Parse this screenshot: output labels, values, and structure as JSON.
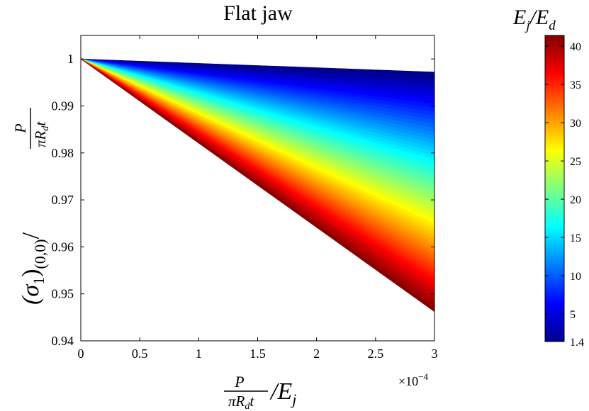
{
  "chart_data": {
    "type": "area",
    "title": "Flat jaw",
    "xlabel_math": {
      "num": "P",
      "den": "πR",
      "den_sub": "d",
      "den_tail": "t",
      "tail": "/E",
      "tail_sub": "j"
    },
    "ylabel_math": {
      "lead": "(σ",
      "lead_sub": "1",
      "close": ")",
      "paren_sub": "(0,0)",
      "slash": "/",
      "num": "P",
      "den": "πR",
      "den_sub": "d",
      "den_tail": "t"
    },
    "x_multiplier": {
      "base": "×10",
      "exp": "−4"
    },
    "xlim": [
      0,
      3
    ],
    "ylim": [
      0.94,
      1.005
    ],
    "x_ticks": [
      0,
      0.5,
      1,
      1.5,
      2,
      2.5,
      3
    ],
    "x_tick_labels": [
      "0",
      "0.5",
      "1",
      "1.5",
      "2",
      "2.5",
      "3"
    ],
    "y_ticks": [
      0.94,
      0.95,
      0.96,
      0.97,
      0.98,
      0.99,
      1
    ],
    "y_tick_labels": [
      "0.94",
      "0.95",
      "0.96",
      "0.97",
      "0.98",
      "0.99",
      "1"
    ],
    "series_family": {
      "description_param": "E_j/E_d",
      "param_min": 1.4,
      "param_max": 41.4,
      "line_count": 60,
      "origin": {
        "x": 0,
        "y": 1
      },
      "end_at_x": 3,
      "end_y_at_param_min": 0.9972,
      "end_y_at_param_max": 0.9462
    },
    "colorbar": {
      "label_main": "E",
      "label_sub": "j",
      "label_slash": "/E",
      "label_sub2": "d",
      "min": 1.4,
      "max": 41.4,
      "ticks": [
        1.4,
        5,
        10,
        15,
        20,
        25,
        30,
        35,
        40
      ],
      "tick_labels": [
        "1.4",
        "5",
        "10",
        "15",
        "20",
        "25",
        "30",
        "35",
        "40"
      ],
      "colormap": "jet"
    }
  }
}
